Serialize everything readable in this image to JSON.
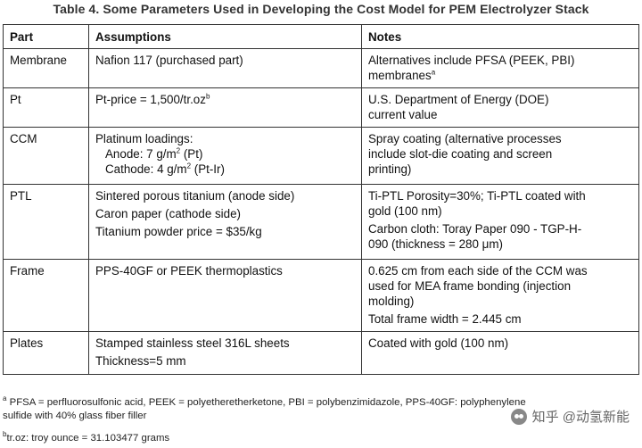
{
  "title": "Table 4. Some Parameters Used in Developing the Cost Model for PEM Electrolyzer Stack",
  "headers": {
    "part": "Part",
    "assumptions": "Assumptions",
    "notes": "Notes"
  },
  "rows": {
    "membrane": {
      "part": "Membrane",
      "assumption": "Nafion 117 (purchased part)",
      "note_1": "Alternatives include PFSA (PEEK, PBI)",
      "note_2": "membranes",
      "note_sup": "a"
    },
    "pt": {
      "part": "Pt",
      "assumption": "Pt-price = 1,500/tr.oz",
      "assumption_sup": "b",
      "note_1": "U.S. Department of Energy (DOE)",
      "note_2": "current value"
    },
    "ccm": {
      "part": "CCM",
      "assumption_1": "Platinum loadings:",
      "anode_pre": "Anode: 7 g/m",
      "anode_sup": "2",
      "anode_post": " (Pt)",
      "cathode_pre": "Cathode: 4 g/m",
      "cathode_sup": "2",
      "cathode_post": " (Pt-Ir)",
      "note_1": "Spray coating (alternative processes",
      "note_2": "include slot-die coating and screen",
      "note_3": "printing)"
    },
    "ptl": {
      "part": "PTL",
      "assumption_1": "Sintered porous titanium (anode side)",
      "assumption_2": "Caron paper (cathode side)",
      "assumption_3": "Titanium powder price = $35/kg",
      "note_1": "Ti-PTL Porosity=30%; Ti-PTL coated with",
      "note_2": "gold (100 nm)",
      "note_3": "Carbon cloth: Toray Paper 090 - TGP-H-",
      "note_4": "090 (thickness = 280 μm)"
    },
    "frame": {
      "part": "Frame",
      "assumption": "PPS-40GF or PEEK thermoplastics",
      "note_1": "0.625 cm from each side of the CCM was",
      "note_2": "used for MEA frame bonding (injection",
      "note_3": "molding)",
      "note_4": "Total frame width = 2.445 cm"
    },
    "plates": {
      "part": "Plates",
      "assumption_1": "Stamped stainless steel 316L sheets",
      "assumption_2": "Thickness=5 mm",
      "note": "Coated with gold (100 nm)"
    }
  },
  "footnotes": {
    "a_mark": "a",
    "a_text_1": " PFSA = perfluorosulfonic acid, PEEK = polyetheretherketone, PBI = polybenzimidazole, PPS-40GF: polyphenylene",
    "a_text_2": "sulfide with 40% glass fiber filler",
    "b_mark": "b",
    "b_text": "tr.oz: troy ounce = 31.103477 grams"
  },
  "watermark": {
    "text": "知乎 @动氢新能"
  }
}
